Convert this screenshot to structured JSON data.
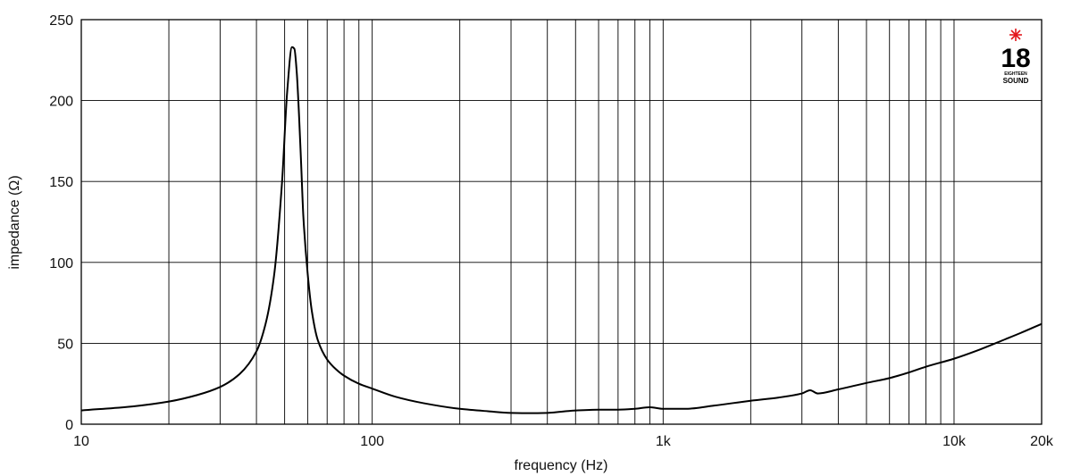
{
  "chart_data": {
    "type": "line",
    "title": "",
    "xlabel": "frequency (Hz)",
    "ylabel": "impedance (Ω)",
    "xscale": "log",
    "xlim": [
      10,
      20000
    ],
    "ylim": [
      0,
      250
    ],
    "grid": true,
    "x_ticks": [
      {
        "value": 10,
        "label": "10"
      },
      {
        "value": 100,
        "label": "100"
      },
      {
        "value": 1000,
        "label": "1k"
      },
      {
        "value": 10000,
        "label": "10k"
      },
      {
        "value": 20000,
        "label": "20k"
      }
    ],
    "y_ticks": [
      {
        "value": 0,
        "label": "0"
      },
      {
        "value": 50,
        "label": "50"
      },
      {
        "value": 100,
        "label": "100"
      },
      {
        "value": 150,
        "label": "150"
      },
      {
        "value": 200,
        "label": "200"
      },
      {
        "value": 250,
        "label": "250"
      }
    ],
    "series": [
      {
        "color": "#000000",
        "x": [
          10,
          15,
          20,
          25,
          30,
          35,
          40,
          43,
          46,
          49,
          51,
          53,
          54,
          55,
          56,
          57,
          58,
          60,
          62,
          65,
          70,
          75,
          80,
          90,
          100,
          120,
          150,
          200,
          250,
          300,
          350,
          400,
          500,
          600,
          700,
          800,
          900,
          1000,
          1200,
          1500,
          2000,
          2500,
          3000,
          3200,
          3400,
          4000,
          5000,
          6000,
          7000,
          8000,
          10000,
          12000,
          15000,
          17000,
          20000
        ],
        "y": [
          8.5,
          11,
          14,
          18,
          23,
          31,
          45,
          62,
          92,
          150,
          205,
          233,
          232,
          218,
          192,
          160,
          128,
          93,
          70,
          52,
          40,
          34,
          30,
          25,
          22,
          17,
          13,
          9.5,
          8,
          7,
          6.8,
          7,
          8.5,
          9,
          9,
          9.5,
          10.5,
          9.5,
          9.5,
          11.5,
          14.5,
          16.5,
          19,
          21,
          19,
          21.5,
          25.5,
          28.5,
          32,
          35.5,
          40.5,
          45.5,
          52.5,
          56.5,
          62
        ]
      }
    ]
  },
  "logo": {
    "number": "18",
    "line1": "EIGHTEEN",
    "line2": "SOUND",
    "star_color": "#e3161b"
  }
}
